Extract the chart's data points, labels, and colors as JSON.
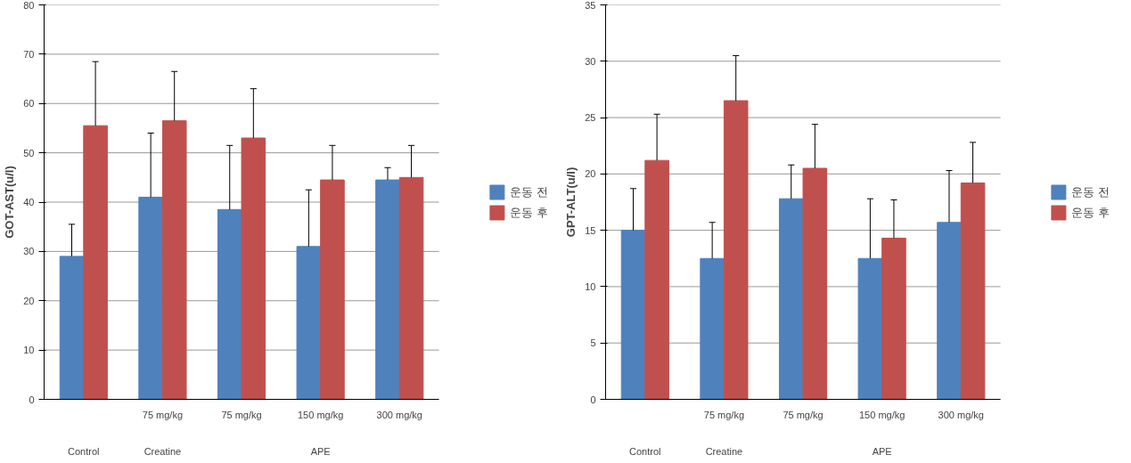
{
  "chart_data": [
    {
      "type": "bar",
      "ylabel": "GOT-AST(u/l)",
      "categories": [
        null,
        "75 mg/kg",
        "75 mg/kg",
        "150 mg/kg",
        "300 mg/kg"
      ],
      "annotations": [
        "Control",
        "Creatine",
        "APE"
      ],
      "series": [
        {
          "name": "운동 전",
          "color": "#4f81bd",
          "values": [
            29,
            41,
            38.5,
            31,
            44.5
          ],
          "errors": [
            [
              29,
              35.5
            ],
            [
              41,
              54
            ],
            [
              38.5,
              51.5
            ],
            [
              31,
              42.5
            ],
            [
              44.5,
              47
            ]
          ]
        },
        {
          "name": "운동 후",
          "color": "#c0504d",
          "values": [
            55.5,
            56.5,
            53,
            44.5,
            45
          ],
          "errors": [
            [
              55.5,
              68.5
            ],
            [
              56.5,
              66.5
            ],
            [
              53,
              63
            ],
            [
              44.5,
              51.5
            ],
            [
              45,
              51.5
            ]
          ]
        }
      ],
      "ylim": [
        0,
        80
      ],
      "yticks": [
        0,
        10,
        20,
        30,
        40,
        50,
        60,
        70,
        80
      ],
      "grid": "y",
      "legend": "right"
    },
    {
      "type": "bar",
      "ylabel": "GPT-ALT(u/l)",
      "categories": [
        null,
        "75 mg/kg",
        "75 mg/kg",
        "150 mg/kg",
        "300 mg/kg"
      ],
      "annotations": [
        "Control",
        "Creatine",
        "APE"
      ],
      "series": [
        {
          "name": "운동 전",
          "color": "#4f81bd",
          "values": [
            15,
            12.5,
            17.8,
            12.5,
            15.7
          ],
          "errors": [
            [
              15,
              18.7
            ],
            [
              12.5,
              15.7
            ],
            [
              17.8,
              20.8
            ],
            [
              12.5,
              17.8
            ],
            [
              15.7,
              20.3
            ]
          ]
        },
        {
          "name": "운동 후",
          "color": "#c0504d",
          "values": [
            21.2,
            26.5,
            20.5,
            14.3,
            19.2
          ],
          "errors": [
            [
              21.2,
              25.3
            ],
            [
              26.5,
              30.5
            ],
            [
              20.5,
              24.4
            ],
            [
              14.3,
              17.7
            ],
            [
              19.2,
              22.8
            ]
          ]
        }
      ],
      "ylim": [
        0,
        35
      ],
      "yticks": [
        0,
        5,
        10,
        15,
        20,
        25,
        30,
        35
      ],
      "grid": "y",
      "legend": "right"
    }
  ]
}
